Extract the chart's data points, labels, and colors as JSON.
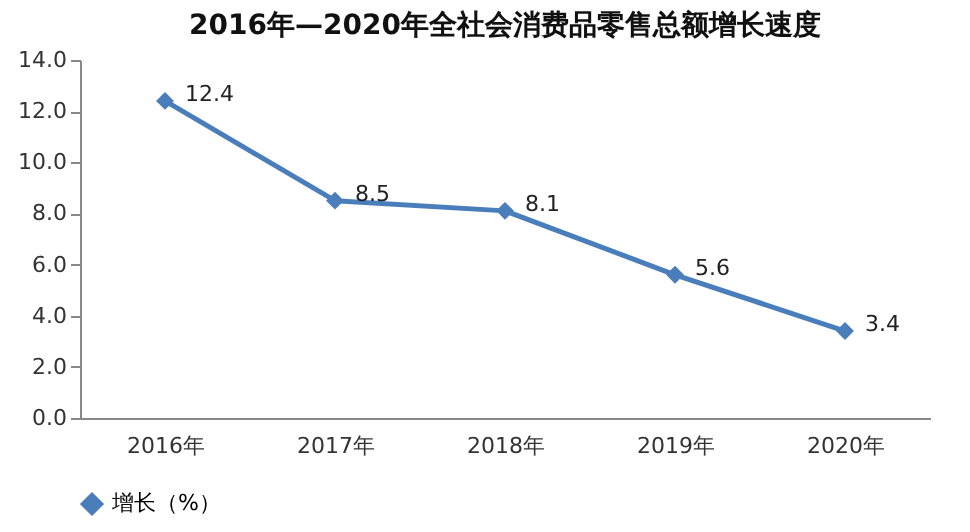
{
  "chart_data": {
    "type": "line",
    "title": "2016年—2020年全社会消费品零售总额增长速度",
    "categories": [
      "2016年",
      "2017年",
      "2018年",
      "2019年",
      "2020年"
    ],
    "series": [
      {
        "name": "增长（%）",
        "color": "#4a7ebb",
        "values": [
          12.4,
          8.5,
          8.1,
          5.6,
          3.4
        ]
      }
    ],
    "ylim": [
      0,
      14
    ],
    "yticks": [
      {
        "value": 0,
        "label": "0.0"
      },
      {
        "value": 2,
        "label": "2.0"
      },
      {
        "value": 4,
        "label": "4.0"
      },
      {
        "value": 6,
        "label": "6.0"
      },
      {
        "value": 8,
        "label": "8.0"
      },
      {
        "value": 10,
        "label": "10.0"
      },
      {
        "value": 12,
        "label": "12.0"
      },
      {
        "value": 14,
        "label": "14.0"
      }
    ],
    "data_labels": true,
    "grid": false,
    "legend": "bottom",
    "marker": "diamond",
    "line_style": "solid"
  }
}
